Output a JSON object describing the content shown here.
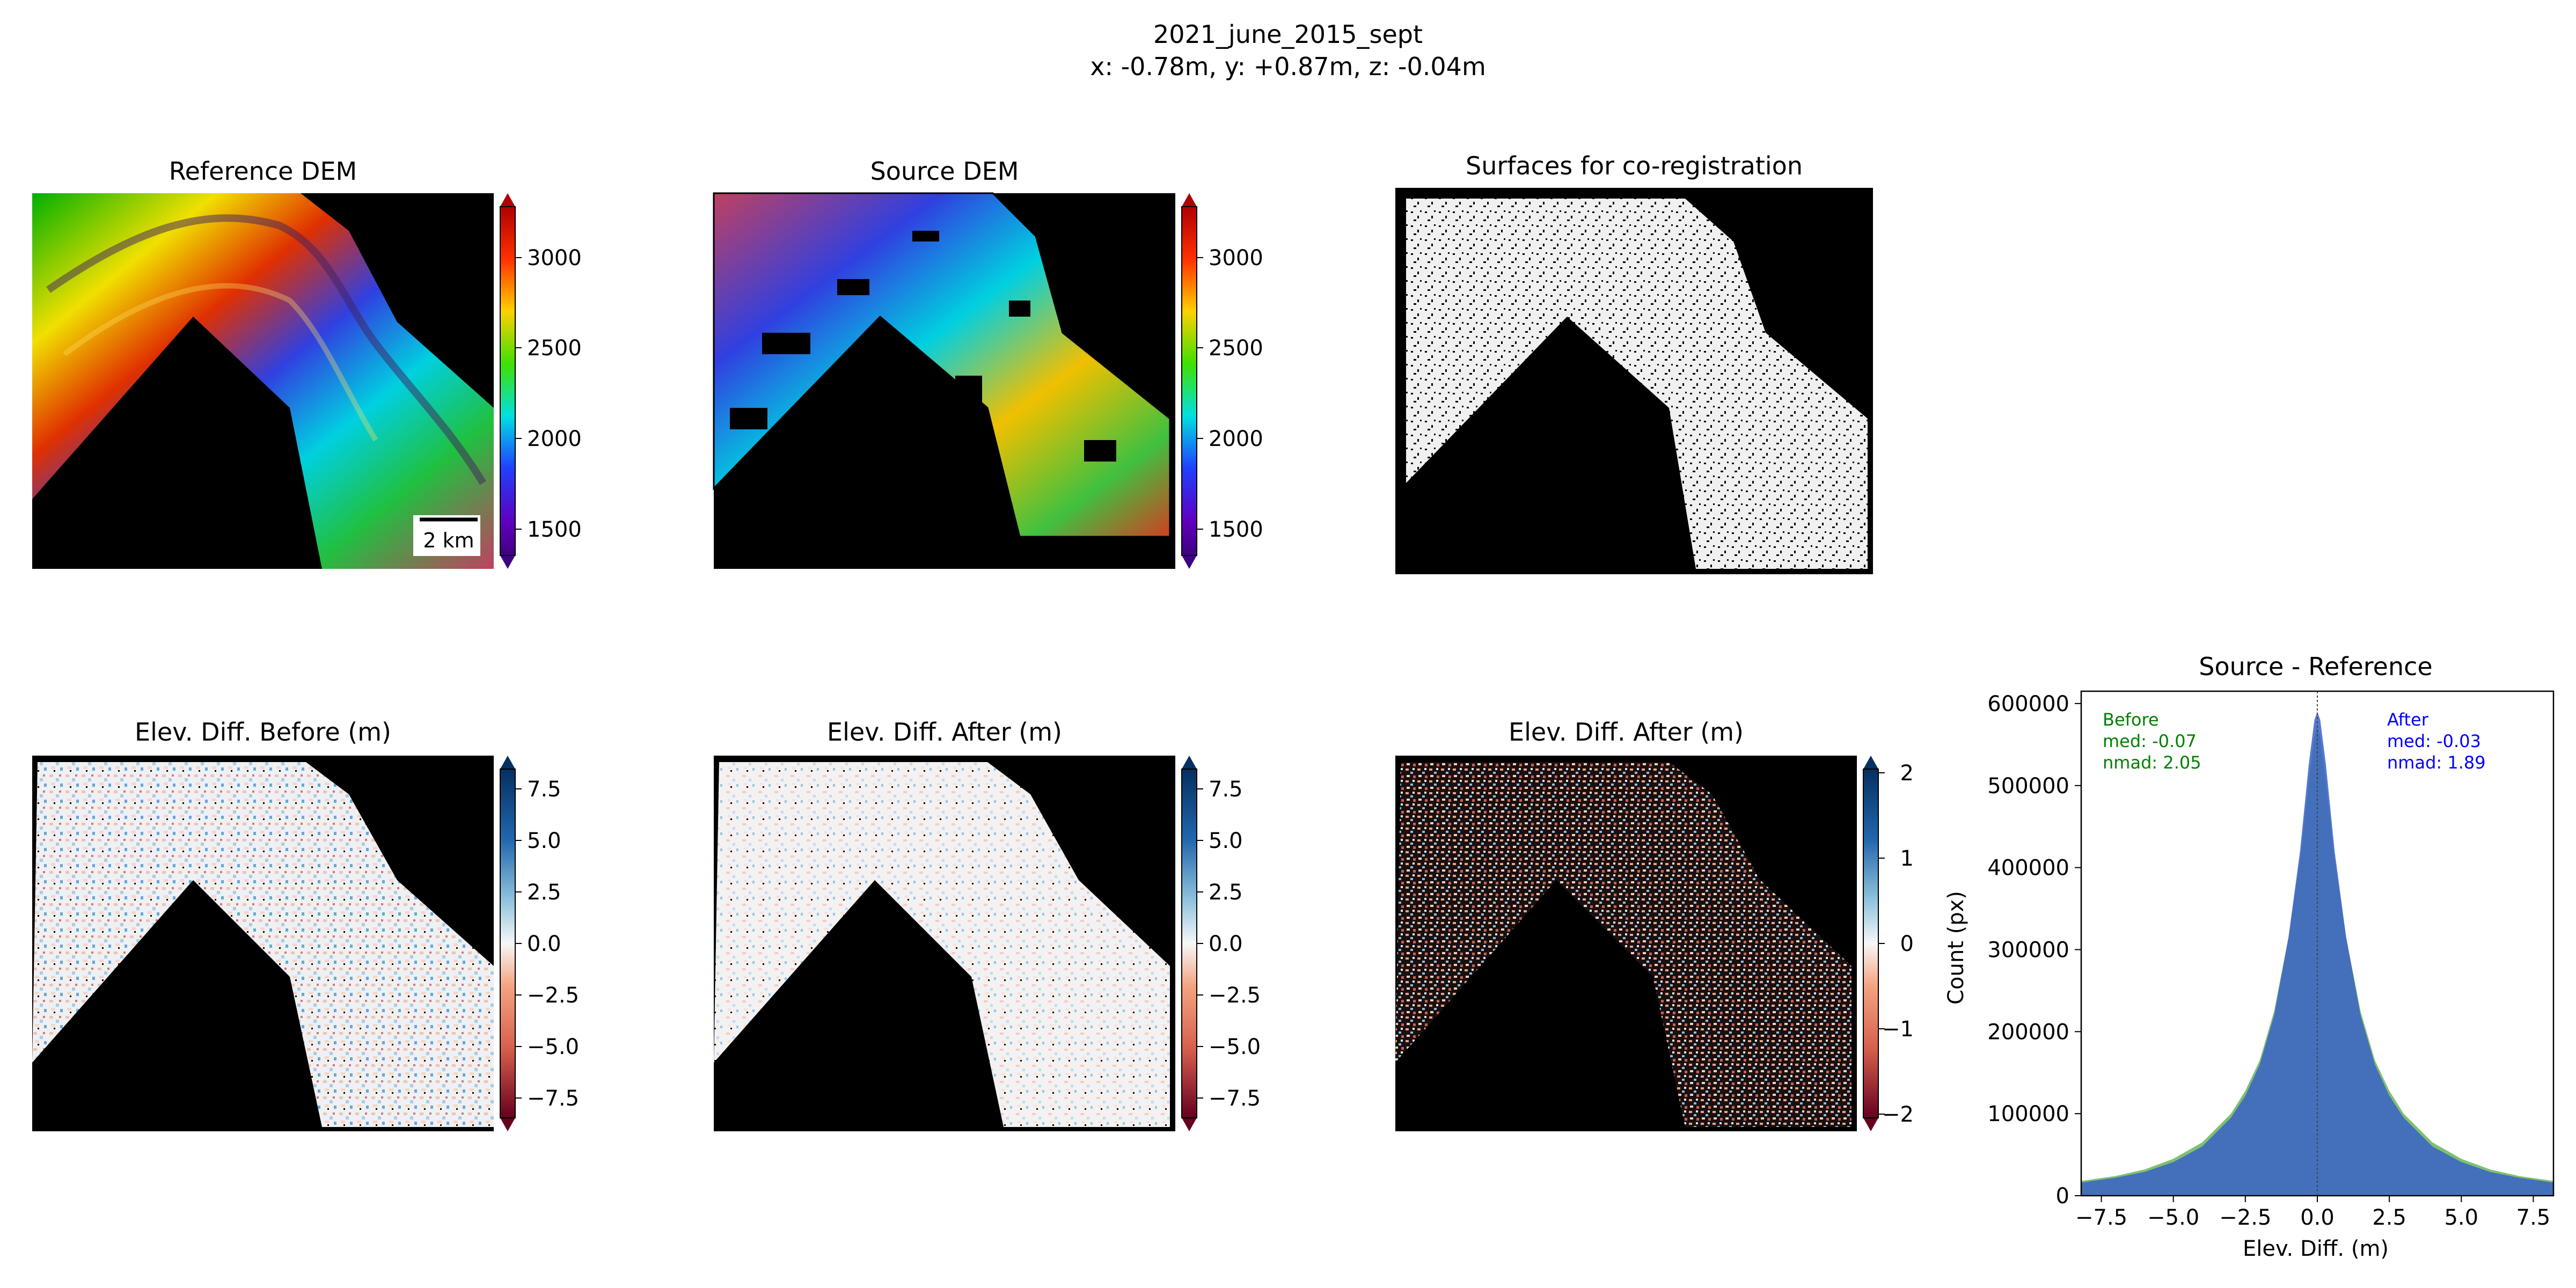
{
  "figure": {
    "title_line1": "2021_june_2015_sept",
    "title_line2": "x: -0.78m, y: +0.87m, z: -0.04m"
  },
  "panels": {
    "reference_dem": {
      "title": "Reference DEM",
      "colorbar_ticks": [
        "3000",
        "2500",
        "2000",
        "1500"
      ],
      "scalebar_label": "2 km"
    },
    "source_dem": {
      "title": "Source DEM",
      "colorbar_ticks": [
        "3000",
        "2500",
        "2000",
        "1500"
      ]
    },
    "surfaces": {
      "title": "Surfaces for co-registration"
    },
    "diff_before": {
      "title": "Elev. Diff. Before (m)",
      "colorbar_ticks": [
        "7.5",
        "5.0",
        "2.5",
        "0.0",
        "−2.5",
        "−5.0",
        "−7.5"
      ]
    },
    "diff_after": {
      "title": "Elev. Diff. After (m)",
      "colorbar_ticks": [
        "7.5",
        "5.0",
        "2.5",
        "0.0",
        "−2.5",
        "−5.0",
        "−7.5"
      ]
    },
    "diff_after_zoom": {
      "title": "Elev. Diff. After (m)",
      "colorbar_ticks": [
        "2",
        "1",
        "0",
        "−1",
        "−2"
      ]
    }
  },
  "chart_data": {
    "type": "histogram",
    "title": "Source - Reference",
    "xlabel": "Elev. Diff. (m)",
    "ylabel": "Count (px)",
    "xlim": [
      -8.2,
      8.2
    ],
    "ylim": [
      0,
      615000
    ],
    "x_ticks": [
      -7.5,
      -5.0,
      -2.5,
      0.0,
      2.5,
      5.0,
      7.5
    ],
    "x_tick_labels": [
      "−7.5",
      "−5.0",
      "−2.5",
      "0.0",
      "2.5",
      "5.0",
      "7.5"
    ],
    "y_ticks": [
      0,
      100000,
      200000,
      300000,
      400000,
      500000,
      600000
    ],
    "y_tick_labels": [
      "0",
      "100000",
      "200000",
      "300000",
      "400000",
      "500000",
      "600000"
    ],
    "series": [
      {
        "name": "Before",
        "color": "#80c070",
        "annotation": [
          "Before",
          "med: -0.07",
          "nmad: 2.05"
        ],
        "points": [
          [
            -8.2,
            18000
          ],
          [
            -7.0,
            24000
          ],
          [
            -6.0,
            32000
          ],
          [
            -5.0,
            45000
          ],
          [
            -4.0,
            65000
          ],
          [
            -3.0,
            100000
          ],
          [
            -2.5,
            128000
          ],
          [
            -2.0,
            165000
          ],
          [
            -1.5,
            225000
          ],
          [
            -1.0,
            315000
          ],
          [
            -0.6,
            410000
          ],
          [
            -0.3,
            505000
          ],
          [
            -0.1,
            560000
          ],
          [
            0.0,
            575000
          ],
          [
            0.1,
            560000
          ],
          [
            0.3,
            505000
          ],
          [
            0.6,
            410000
          ],
          [
            1.0,
            315000
          ],
          [
            1.5,
            225000
          ],
          [
            2.0,
            165000
          ],
          [
            2.5,
            128000
          ],
          [
            3.0,
            100000
          ],
          [
            4.0,
            65000
          ],
          [
            5.0,
            45000
          ],
          [
            6.0,
            32000
          ],
          [
            7.0,
            24000
          ],
          [
            8.2,
            18000
          ]
        ]
      },
      {
        "name": "After",
        "color": "#3a62c8",
        "annotation": [
          "After",
          "med: -0.03",
          "nmad: 1.89"
        ],
        "points": [
          [
            -8.2,
            16000
          ],
          [
            -7.0,
            22000
          ],
          [
            -6.0,
            29000
          ],
          [
            -5.0,
            41000
          ],
          [
            -4.0,
            60000
          ],
          [
            -3.0,
            95000
          ],
          [
            -2.5,
            122000
          ],
          [
            -2.0,
            160000
          ],
          [
            -1.5,
            220000
          ],
          [
            -1.0,
            315000
          ],
          [
            -0.6,
            420000
          ],
          [
            -0.3,
            525000
          ],
          [
            -0.1,
            580000
          ],
          [
            0.0,
            590000
          ],
          [
            0.1,
            580000
          ],
          [
            0.3,
            525000
          ],
          [
            0.6,
            420000
          ],
          [
            1.0,
            315000
          ],
          [
            1.5,
            220000
          ],
          [
            2.0,
            160000
          ],
          [
            2.5,
            122000
          ],
          [
            3.0,
            95000
          ],
          [
            4.0,
            60000
          ],
          [
            5.0,
            41000
          ],
          [
            6.0,
            29000
          ],
          [
            7.0,
            22000
          ],
          [
            8.2,
            16000
          ]
        ]
      }
    ]
  }
}
